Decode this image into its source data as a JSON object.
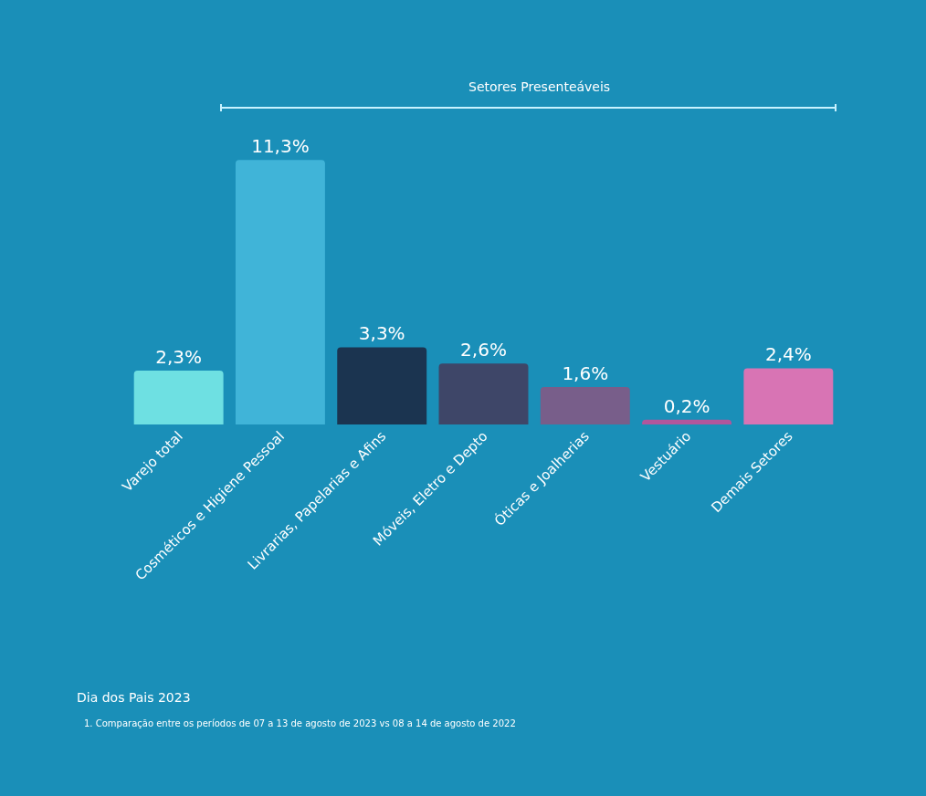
{
  "chart_data": {
    "type": "bar",
    "categories": [
      "Varejo total",
      "Cosméticos e Higiene Pessoal",
      "Livrarias, Papelarias e Afins",
      "Móveis, Eletro e Depto",
      "Óticas e Joalherias",
      "Vestuário",
      "Demais Setores"
    ],
    "values": [
      2.3,
      11.3,
      3.3,
      2.6,
      1.6,
      0.2,
      2.4
    ],
    "value_labels": [
      "2,3%",
      "11,3%",
      "3,3%",
      "2,6%",
      "1,6%",
      "0,2%",
      "2,4%"
    ],
    "colors": [
      "#6ee0e2",
      "#40b4d8",
      "#1b3450",
      "#3e4668",
      "#785e8a",
      "#b0569c",
      "#d874b4"
    ],
    "annotations": [
      "Setores Presenteáveis",
      "Dia dos Pais 2023",
      "1. Comparação entre os períodos de 07 a 13 de agosto de 2023 vs 08 a 14 de agosto de 2022"
    ]
  }
}
